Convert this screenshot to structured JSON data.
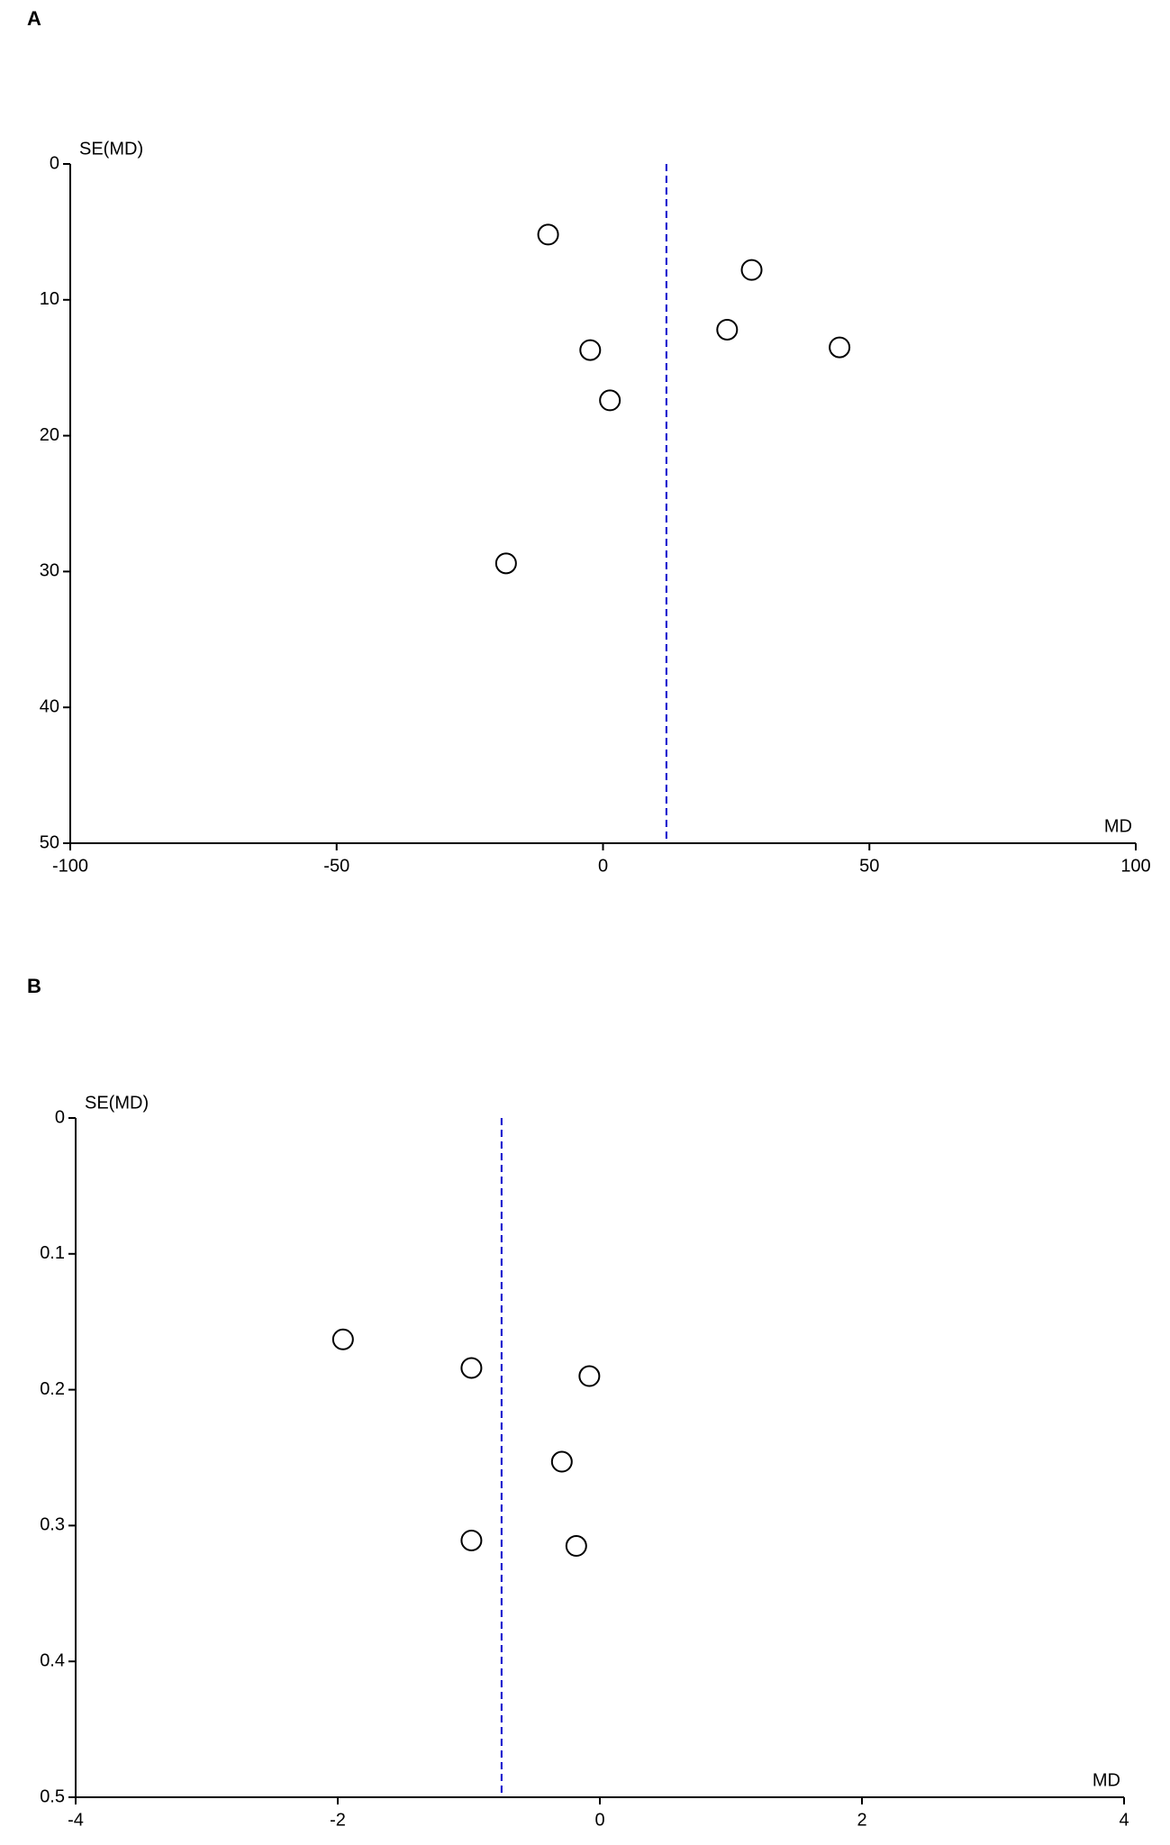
{
  "chart_data": [
    {
      "type": "scatter",
      "panel": "A",
      "xlabel": "MD",
      "ylabel": "SE(MD)",
      "x": [
        -10.3,
        27.9,
        -2.4,
        23.3,
        44.4,
        1.3,
        -18.2
      ],
      "values": [
        5.2,
        7.8,
        13.7,
        12.2,
        13.5,
        17.4,
        29.4
      ],
      "reference_x": 11.9,
      "color": "#000000",
      "reference_color": "#0000cc",
      "xlim": [
        -100,
        100
      ],
      "xticks": [
        -100,
        -50,
        0,
        50,
        100
      ],
      "ylim": [
        0,
        50
      ],
      "yticks": [
        0,
        10,
        20,
        30,
        40,
        50
      ],
      "y_inverted": true
    },
    {
      "type": "scatter",
      "panel": "B",
      "xlabel": "MD",
      "ylabel": "SE(MD)",
      "x": [
        -1.96,
        -0.98,
        -0.08,
        -0.29,
        -0.98,
        -0.18
      ],
      "values": [
        0.163,
        0.184,
        0.19,
        0.253,
        0.311,
        0.315
      ],
      "reference_x": -0.75,
      "color": "#000000",
      "reference_color": "#0000cc",
      "xlim": [
        -4,
        4
      ],
      "xticks": [
        -4,
        -2,
        0,
        2,
        4
      ],
      "ylim": [
        0,
        0.5
      ],
      "yticks": [
        0,
        0.1,
        0.2,
        0.3,
        0.4,
        0.5
      ],
      "y_inverted": true
    }
  ]
}
